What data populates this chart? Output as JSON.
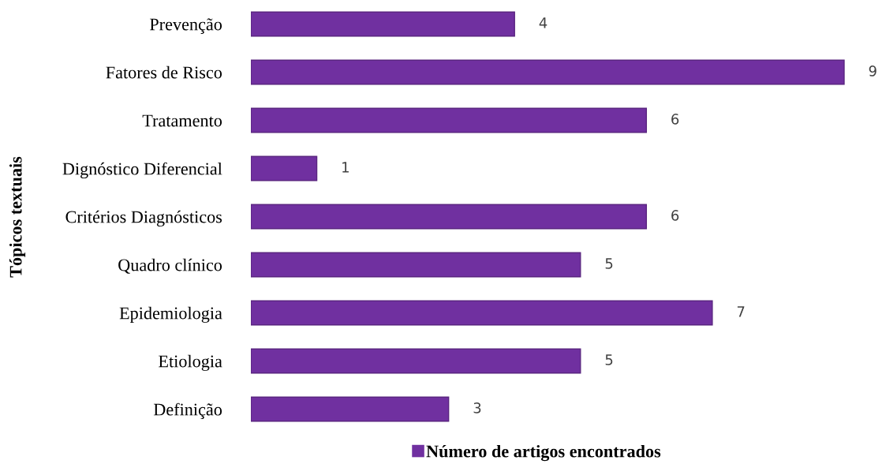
{
  "chart_data": {
    "type": "bar",
    "orientation": "horizontal",
    "ylabel": "Tópicos textuais",
    "categories": [
      "Prevenção",
      "Fatores de Risco",
      "Tratamento",
      "Dignóstico Diferencial",
      "Critérios Diagnósticos",
      "Quadro clínico",
      "Epidemiologia",
      "Etiologia",
      "Definição"
    ],
    "series": [
      {
        "name": "Número de artigos encontrados",
        "color": "#7030a0",
        "values": [
          4,
          9,
          6,
          1,
          6,
          5,
          7,
          5,
          3
        ]
      }
    ],
    "data_labels": true,
    "legend": "bottom",
    "grid": false
  }
}
